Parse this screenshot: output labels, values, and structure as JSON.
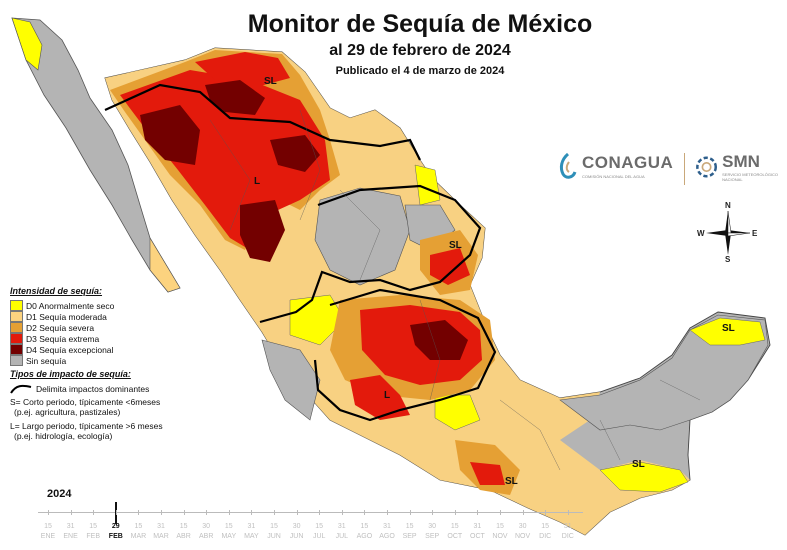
{
  "title": "Monitor de Sequía de México",
  "subtitle": "al 29 de febrero de 2024",
  "published": "Publicado el 4 de marzo de 2024",
  "logos": {
    "conagua": "CONAGUA",
    "conagua_tag": "COMISIÓN NACIONAL DEL AGUA",
    "smn": "SMN",
    "smn_tag": "SERVICIO METEOROLÓGICO NACIONAL"
  },
  "compass": {
    "n": "N",
    "s": "S",
    "e": "E",
    "w": "W"
  },
  "legend": {
    "intensity_title": "Intensidad de sequía:",
    "categories": [
      {
        "code": "D0",
        "label": "D0 Anormalmente seco",
        "color": "#ffff00"
      },
      {
        "code": "D1",
        "label": "D1 Sequía moderada",
        "color": "#fcd37f"
      },
      {
        "code": "D2",
        "label": "D2 Sequía severa",
        "color": "#e5a034"
      },
      {
        "code": "D3",
        "label": "D3 Sequía extrema",
        "color": "#e31a0c"
      },
      {
        "code": "D4",
        "label": "D4 Sequía excepcional",
        "color": "#730000"
      },
      {
        "code": "none",
        "label": "Sin sequía",
        "color": "#b4b4b4"
      }
    ],
    "impact_title": "Tipos de impacto de sequía:",
    "impact_line_label": "Delimita impactos dominantes",
    "short_def": "S= Corto periodo, típicamente <6meses",
    "short_example": "(p.ej. agricultura, pastizales)",
    "long_def": "L= Largo periodo, típicamente >6 meses",
    "long_example": "(p.ej. hidrología, ecología)"
  },
  "map_labels": [
    {
      "id": "sl-sonora",
      "text": "SL"
    },
    {
      "id": "l-sinaloa",
      "text": "L"
    },
    {
      "id": "sl-tamaulipas",
      "text": "SL"
    },
    {
      "id": "l-south",
      "text": "L"
    },
    {
      "id": "sl-yucatan",
      "text": "SL"
    },
    {
      "id": "sl-oaxaca",
      "text": "SL"
    },
    {
      "id": "sl-chiapas",
      "text": "SL"
    }
  ],
  "timeline": {
    "year": "2024",
    "current_index": 3,
    "ticks": [
      {
        "day": "15",
        "month": "ENE"
      },
      {
        "day": "31",
        "month": "ENE"
      },
      {
        "day": "15",
        "month": "FEB"
      },
      {
        "day": "29",
        "month": "FEB"
      },
      {
        "day": "15",
        "month": "MAR"
      },
      {
        "day": "31",
        "month": "MAR"
      },
      {
        "day": "15",
        "month": "ABR"
      },
      {
        "day": "30",
        "month": "ABR"
      },
      {
        "day": "15",
        "month": "MAY"
      },
      {
        "day": "31",
        "month": "MAY"
      },
      {
        "day": "15",
        "month": "JUN"
      },
      {
        "day": "30",
        "month": "JUN"
      },
      {
        "day": "15",
        "month": "JUL"
      },
      {
        "day": "31",
        "month": "JUL"
      },
      {
        "day": "15",
        "month": "AGO"
      },
      {
        "day": "31",
        "month": "AGO"
      },
      {
        "day": "15",
        "month": "SEP"
      },
      {
        "day": "30",
        "month": "SEP"
      },
      {
        "day": "15",
        "month": "OCT"
      },
      {
        "day": "31",
        "month": "OCT"
      },
      {
        "day": "15",
        "month": "NOV"
      },
      {
        "day": "30",
        "month": "NOV"
      },
      {
        "day": "15",
        "month": "DIC"
      },
      {
        "day": "31",
        "month": "DIC"
      }
    ]
  }
}
